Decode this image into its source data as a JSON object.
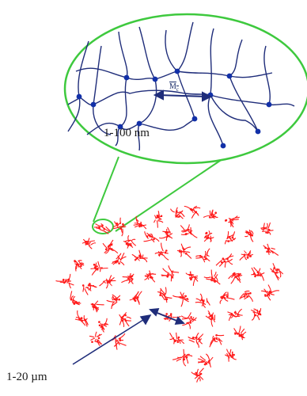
{
  "labels": {
    "network_scale": "1-100 nm",
    "cluster_scale": "1-20 µm",
    "mc_main": "M",
    "mc_sub": "c"
  },
  "colors": {
    "outline": "#3ec93e",
    "chains": "#1f2d7a",
    "crosslinks": "#1230a8",
    "particles": "#ff1a1a",
    "arrows": "#1f2d7a"
  }
}
